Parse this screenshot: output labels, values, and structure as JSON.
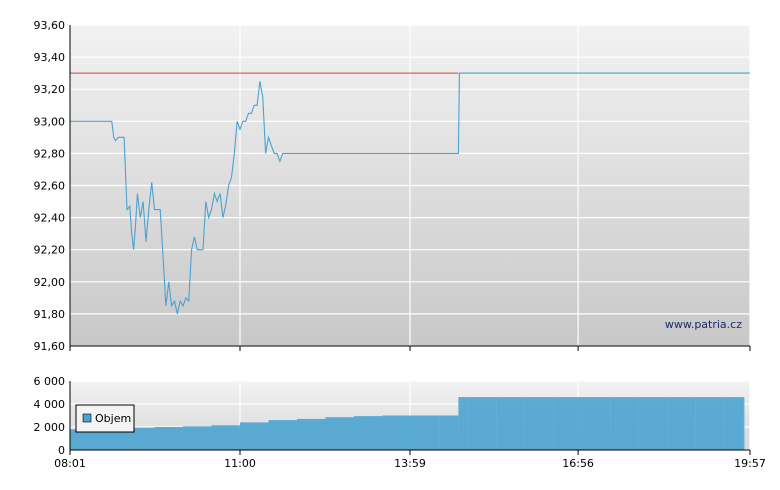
{
  "watermark": "www.patria.cz",
  "chart_data": [
    {
      "type": "line",
      "y_ticks": [
        "93,60",
        "93,40",
        "93,20",
        "93,00",
        "92,80",
        "92,60",
        "92,40",
        "92,20",
        "92,00",
        "91,80",
        "91,60"
      ],
      "ylim": [
        91.6,
        93.6
      ],
      "xlim": [
        "08:01",
        "19:57"
      ],
      "grid": true,
      "colors": {
        "price_line": "#4aa3d0",
        "reference_line": "#d04040",
        "background_top": "#f2f2f2",
        "background_bottom": "#c8c8c8"
      },
      "reference_line": {
        "value": 93.3,
        "x_end": "14:50"
      },
      "series": [
        {
          "x": [
            "08:01",
            "08:45",
            "08:47",
            "08:49",
            "08:52",
            "08:55",
            "08:58",
            "09:01",
            "09:04",
            "09:06",
            "09:08",
            "09:10",
            "09:12",
            "09:15",
            "09:18",
            "09:21",
            "09:24",
            "09:27",
            "09:30",
            "09:33",
            "09:36",
            "09:39",
            "09:42",
            "09:45",
            "09:48",
            "09:51",
            "09:54",
            "09:57",
            "10:00",
            "10:03",
            "10:06",
            "10:09",
            "10:12",
            "10:15",
            "10:18",
            "10:21",
            "10:24",
            "10:27",
            "10:30",
            "10:33",
            "10:36",
            "10:39",
            "10:42",
            "10:45",
            "10:48",
            "10:51",
            "10:54",
            "10:57",
            "11:00",
            "11:03",
            "11:06",
            "11:09",
            "11:12",
            "11:15",
            "11:18",
            "11:21",
            "11:24",
            "11:27",
            "11:30",
            "11:33",
            "11:36",
            "11:39",
            "11:42",
            "11:45",
            "11:48",
            "11:51",
            "11:54",
            "11:57",
            "12:00",
            "12:03",
            "12:06",
            "12:09",
            "12:12",
            "12:15",
            "12:18",
            "12:21",
            "12:24",
            "12:27",
            "12:30",
            "12:33",
            "12:36",
            "12:40",
            "14:50",
            "14:51",
            "19:57"
          ],
          "values": [
            93.0,
            93.0,
            92.9,
            92.88,
            92.9,
            92.9,
            92.9,
            92.45,
            92.47,
            92.3,
            92.2,
            92.35,
            92.55,
            92.4,
            92.5,
            92.25,
            92.45,
            92.62,
            92.45,
            92.45,
            92.45,
            92.15,
            91.85,
            92.0,
            91.85,
            91.88,
            91.8,
            91.88,
            91.85,
            91.9,
            91.88,
            92.2,
            92.28,
            92.2,
            92.2,
            92.2,
            92.5,
            92.4,
            92.45,
            92.55,
            92.5,
            92.55,
            92.4,
            92.48,
            92.6,
            92.65,
            92.8,
            93.0,
            92.95,
            93.0,
            93.0,
            93.05,
            93.05,
            93.1,
            93.1,
            93.25,
            93.15,
            92.8,
            92.9,
            92.85,
            92.8,
            92.8,
            92.75,
            92.8,
            92.8,
            92.8,
            92.8,
            92.8,
            92.8,
            92.8,
            92.8,
            92.8,
            92.8,
            92.8,
            92.8,
            92.8,
            92.8,
            92.8,
            92.8,
            92.8,
            92.8,
            92.8,
            92.8,
            93.3,
            93.3
          ]
        }
      ]
    },
    {
      "type": "bar",
      "y_ticks": [
        "6 000",
        "4 000",
        "2 000",
        "0"
      ],
      "ylim": [
        0,
        6000
      ],
      "x_ticks": [
        "08:01",
        "11:00",
        "13:59",
        "16:56",
        "19:57"
      ],
      "legend": {
        "label": "Objem",
        "position": "bottom-left"
      },
      "colors": {
        "bar": "#4aa3d0"
      },
      "series": [
        {
          "name": "Objem",
          "x": [
            "08:01",
            "08:30",
            "09:00",
            "09:30",
            "10:00",
            "10:30",
            "11:00",
            "11:30",
            "12:00",
            "12:30",
            "13:00",
            "13:30",
            "14:00",
            "14:30",
            "14:50",
            "15:00",
            "15:30",
            "16:00",
            "16:30",
            "17:00",
            "17:30",
            "18:00",
            "18:30",
            "19:00",
            "19:30",
            "19:50"
          ],
          "values": [
            1800,
            1900,
            1950,
            2000,
            2050,
            2150,
            2400,
            2600,
            2700,
            2850,
            2950,
            3000,
            3000,
            3000,
            4600,
            4600,
            4600,
            4600,
            4600,
            4600,
            4600,
            4600,
            4600,
            4600,
            4600,
            4600
          ]
        }
      ]
    }
  ]
}
